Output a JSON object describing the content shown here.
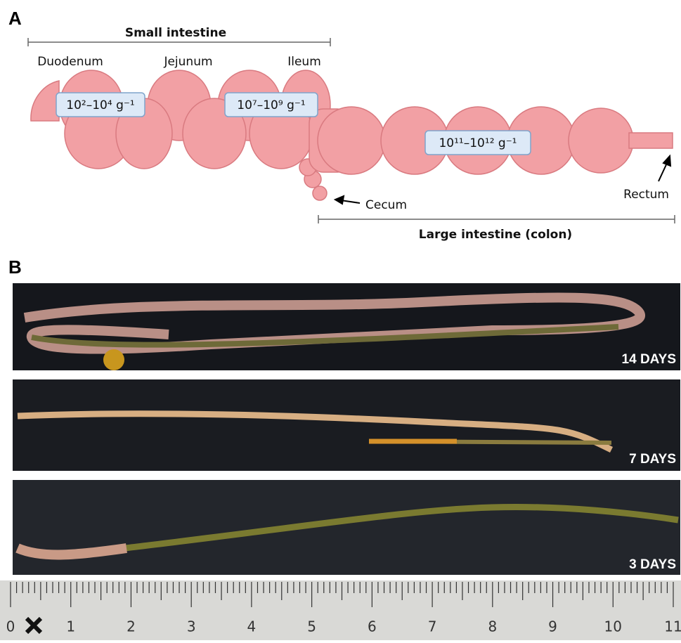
{
  "panel_a": {
    "label": "A",
    "small_intestine": "Small intestine",
    "segments": [
      "Duodenum",
      "Jejunum",
      "Ileum"
    ],
    "concentrations": [
      "10²–10⁴ g⁻¹",
      "10⁷–10⁹ g⁻¹",
      "10¹¹–10¹² g⁻¹"
    ],
    "cecum": "Cecum",
    "rectum": "Rectum",
    "large_intestine": "Large intestine (colon)"
  },
  "panel_b": {
    "label": "B",
    "photos": [
      "14 DAYS",
      "7 DAYS",
      "3 DAYS"
    ],
    "ruler_labels": [
      0,
      1,
      2,
      3,
      4,
      5,
      6,
      7,
      8,
      9,
      10,
      11
    ]
  }
}
